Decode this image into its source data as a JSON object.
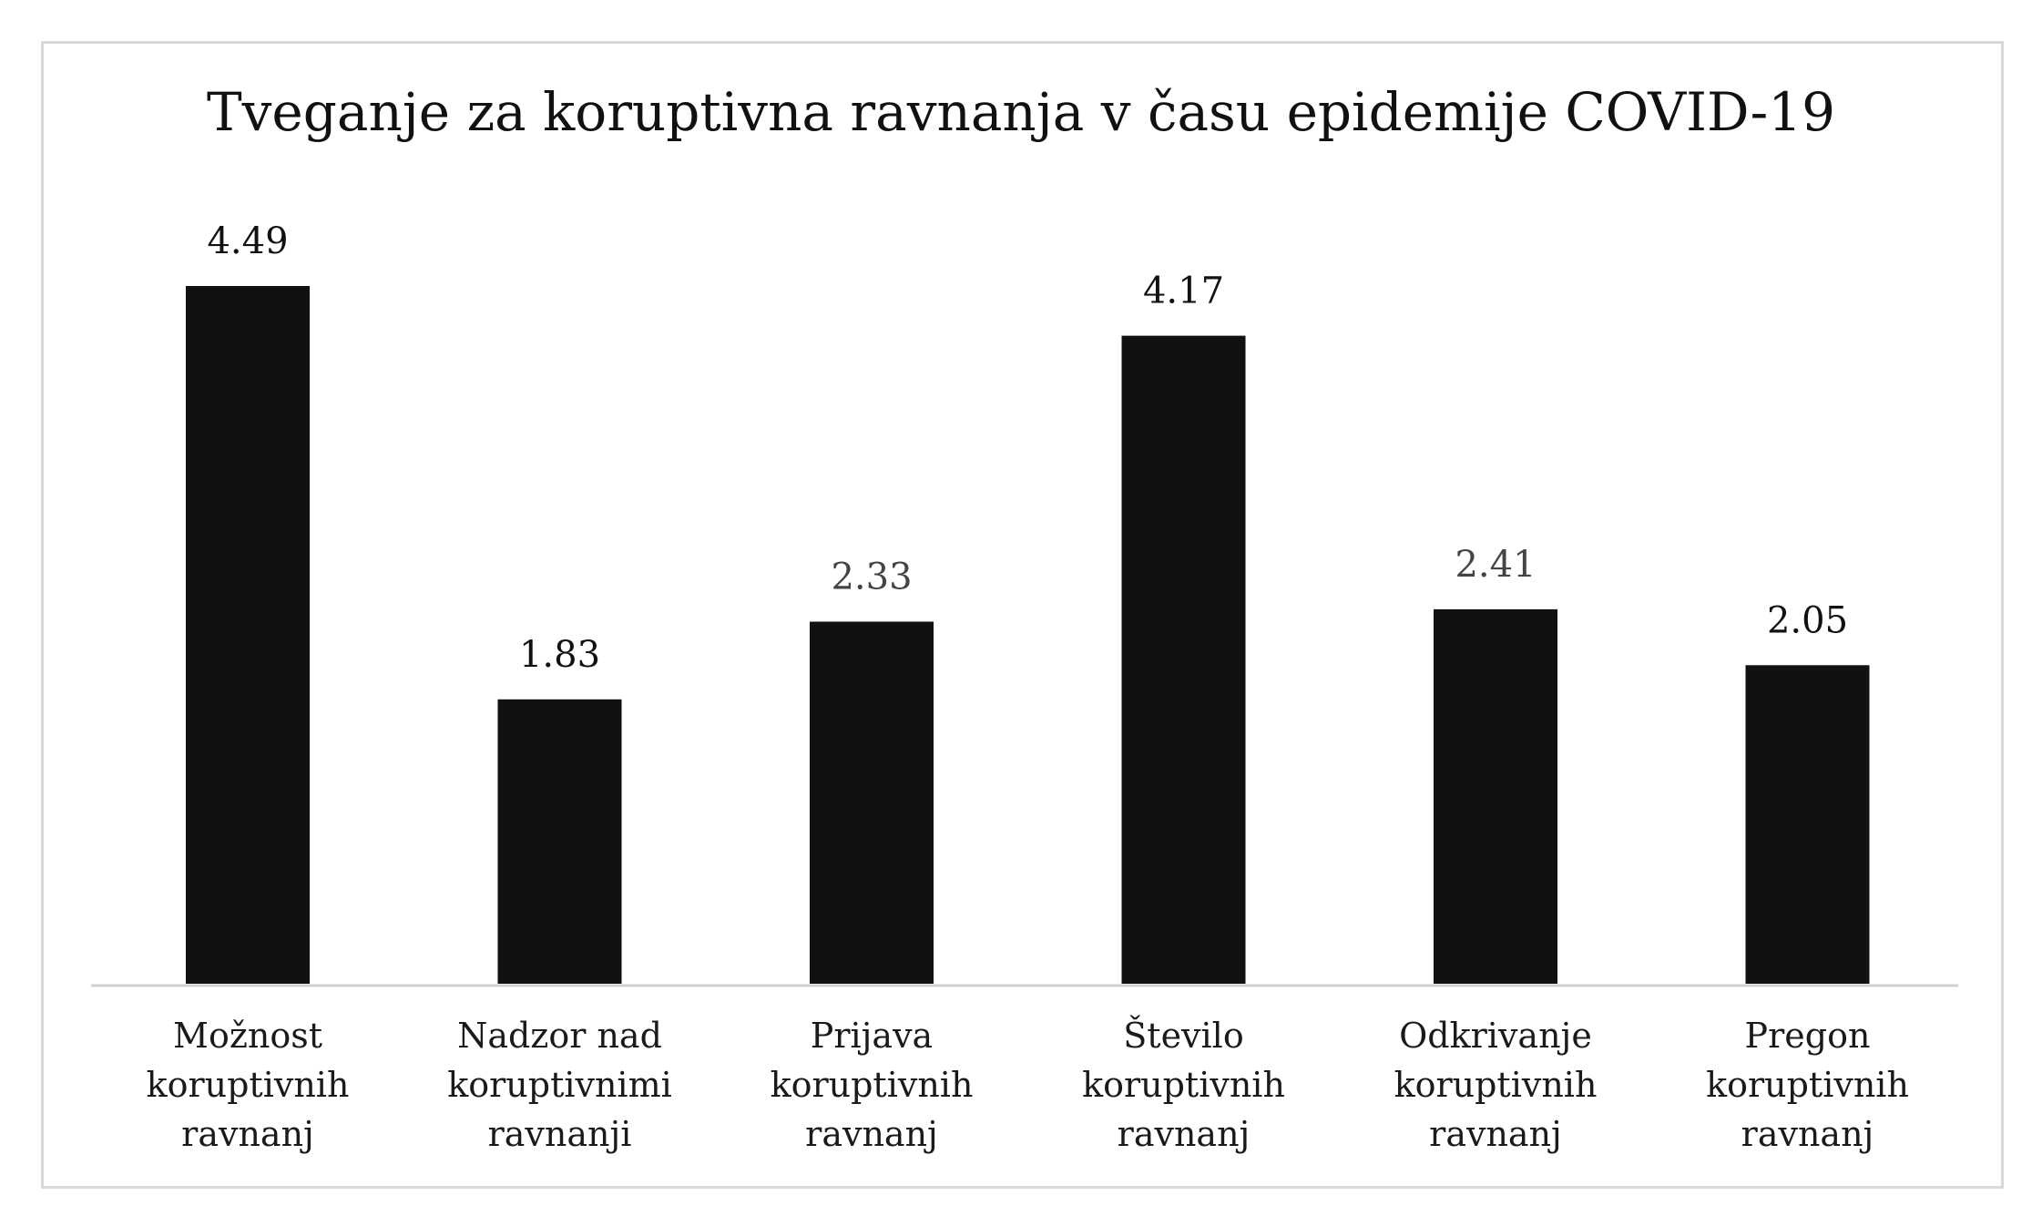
{
  "chart_data": {
    "type": "bar",
    "title": "Tveganje za koruptivna ravnanja v času epidemije COVID-19",
    "categories": [
      [
        "Možnost",
        "koruptivnih",
        "ravnanj"
      ],
      [
        "Nadzor nad",
        "koruptivnimi",
        "ravnanji"
      ],
      [
        "Prijava",
        "koruptivnih",
        "ravnanj"
      ],
      [
        "Število",
        "koruptivnih",
        "ravnanj"
      ],
      [
        "Odkrivanje",
        "koruptivnih",
        "ravnanj"
      ],
      [
        "Pregon",
        "koruptivnih",
        "ravnanj"
      ]
    ],
    "values": [
      4.49,
      1.83,
      2.33,
      4.17,
      2.41,
      2.05
    ],
    "value_labels": [
      "4.49",
      "1.83",
      "2.33",
      "4.17",
      "2.41",
      "2.05"
    ],
    "value_label_colors": [
      "#111111",
      "#111111",
      "#444444",
      "#111111",
      "#444444",
      "#111111"
    ],
    "xlabel": "",
    "ylabel": "",
    "ylim": [
      0,
      4.5
    ],
    "grid": false,
    "legend": "none",
    "bar_color": "#111111",
    "axis_color": "#d0d0d0"
  }
}
